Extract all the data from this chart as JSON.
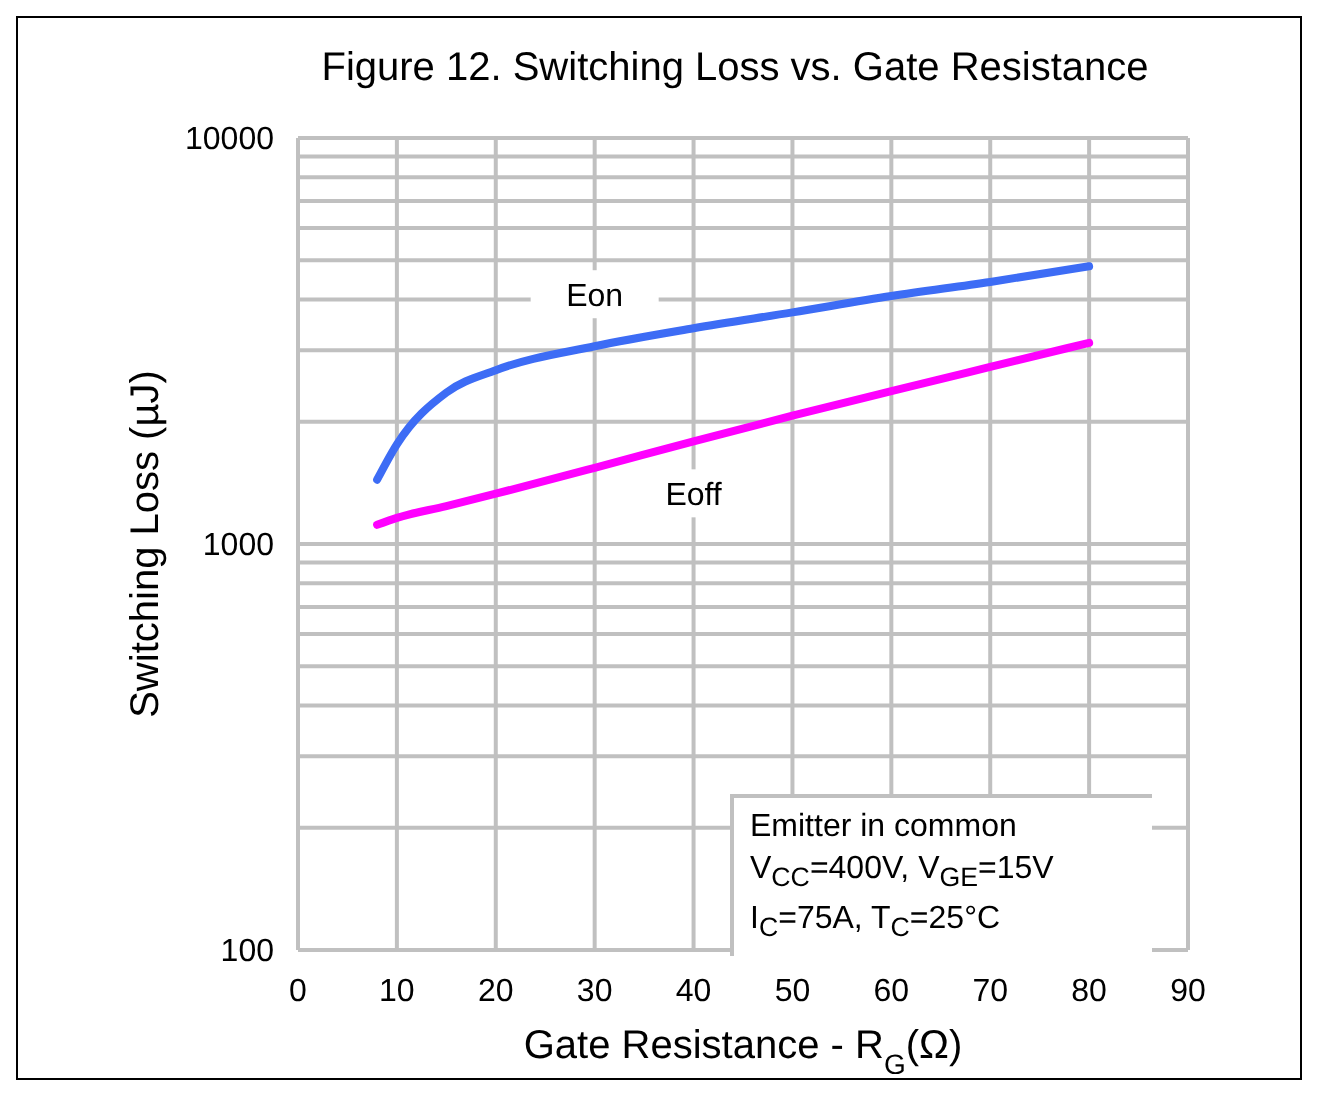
{
  "chart_data": {
    "type": "line",
    "title": "Figure 12. Switching Loss vs. Gate Resistance",
    "xlabel": "Gate Resistance - R$_{G}$(Ω)",
    "ylabel": "Switching Loss (µJ)",
    "log": "y",
    "grid": true,
    "legend": false,
    "xlim": [
      0,
      90
    ],
    "xticks": [
      0,
      10,
      20,
      30,
      40,
      50,
      60,
      70,
      80,
      90
    ],
    "ylim": [
      100,
      10000
    ],
    "yticks": [
      100,
      {
        "value": 200,
        "label": null
      },
      {
        "value": 300,
        "label": null
      },
      {
        "value": 400,
        "label": null
      },
      {
        "value": 500,
        "label": null
      },
      {
        "value": 600,
        "label": null
      },
      {
        "value": 700,
        "label": null
      },
      {
        "value": 800,
        "label": null
      },
      {
        "value": 900,
        "label": null
      },
      1000,
      {
        "value": 2000,
        "label": null
      },
      {
        "value": 3000,
        "label": null
      },
      {
        "value": 4000,
        "label": null
      },
      {
        "value": 5000,
        "label": null
      },
      {
        "value": 6000,
        "label": null
      },
      {
        "value": 7000,
        "label": null
      },
      {
        "value": 8000,
        "label": null
      },
      {
        "value": 9000,
        "label": null
      },
      10000
    ],
    "x": [
      8,
      10,
      15,
      20,
      30,
      40,
      50,
      60,
      70,
      80
    ],
    "series": [
      {
        "name": "Eon",
        "color": "#3d6cf5",
        "values": [
          1440,
          1760,
          2360,
          2680,
          3070,
          3400,
          3720,
          4080,
          4420,
          4830
        ]
      },
      {
        "name": "Eoff",
        "color": "#ff00ff",
        "values": [
          1115,
          1160,
          1240,
          1330,
          1540,
          1790,
          2070,
          2380,
          2730,
          3130
        ]
      }
    ],
    "annotations": [
      "Emitter in common",
      "V$_{CC}$=400V, V$_{GE}$=15V",
      "I$_{C}$=75A, T$_{C}$=25°C"
    ]
  }
}
